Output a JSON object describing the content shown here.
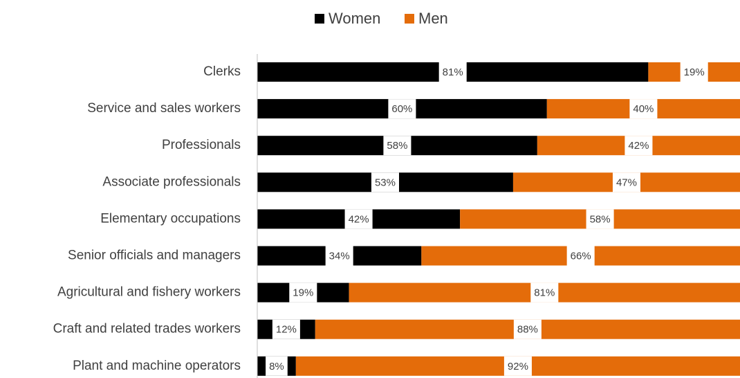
{
  "chart_data": {
    "type": "bar",
    "orientation": "horizontal",
    "stacked": true,
    "categories": [
      "Clerks",
      "Service and sales workers",
      "Professionals",
      "Associate professionals",
      "Elementary occupations",
      "Senior officials and managers",
      "Agricultural and fishery workers",
      "Craft and related trades workers",
      "Plant and machine operators"
    ],
    "series": [
      {
        "name": "Women",
        "color": "#000000",
        "values": [
          81,
          60,
          58,
          53,
          42,
          34,
          19,
          12,
          8
        ],
        "value_labels": [
          "81%",
          "60%",
          "58%",
          "53%",
          "42%",
          "34%",
          "19%",
          "12%",
          "8%"
        ]
      },
      {
        "name": "Men",
        "color": "#e46c0a",
        "values": [
          19,
          40,
          42,
          47,
          58,
          66,
          81,
          88,
          92
        ],
        "value_labels": [
          "19%",
          "40%",
          "42%",
          "47%",
          "58%",
          "66%",
          "81%",
          "88%",
          "92%"
        ]
      }
    ],
    "xlim": [
      0,
      100
    ],
    "legend": "top"
  }
}
